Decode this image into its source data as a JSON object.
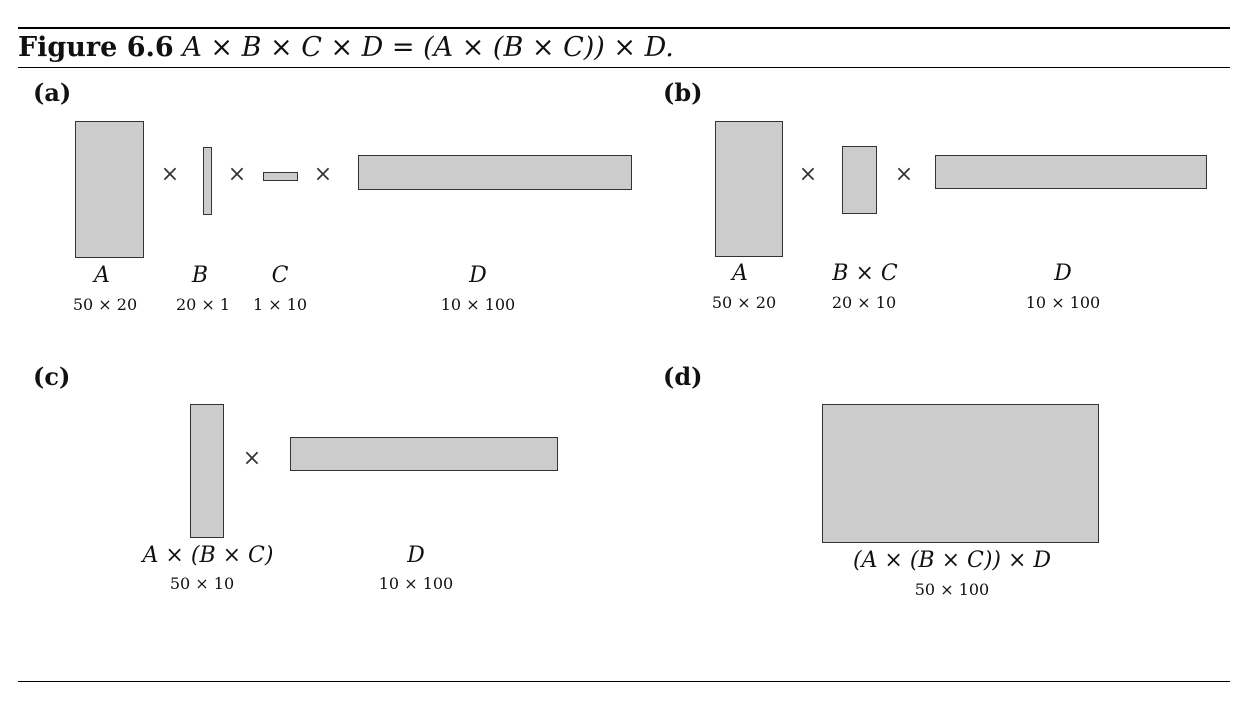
{
  "caption": {
    "figure_label": "Figure 6.6",
    "expression": "A × B × C × D = (A × (B × C)) × D."
  },
  "times_symbol": "×",
  "panels": {
    "a": {
      "label": "(a)",
      "matrices": [
        {
          "name": "A",
          "dims": "50 × 20"
        },
        {
          "name": "B",
          "dims": "20 × 1"
        },
        {
          "name": "C",
          "dims": "1 × 10"
        },
        {
          "name": "D",
          "dims": "10 × 100"
        }
      ]
    },
    "b": {
      "label": "(b)",
      "matrices": [
        {
          "name": "A",
          "dims": "50 × 20"
        },
        {
          "name": "B × C",
          "dims": "20 × 10"
        },
        {
          "name": "D",
          "dims": "10 × 100"
        }
      ]
    },
    "c": {
      "label": "(c)",
      "matrices": [
        {
          "name": "A × (B × C)",
          "dims": "50 × 10"
        },
        {
          "name": "D",
          "dims": "10 × 100"
        }
      ]
    },
    "d": {
      "label": "(d)",
      "matrices": [
        {
          "name": "(A × (B × C)) × D",
          "dims": "50 × 100"
        }
      ]
    }
  }
}
